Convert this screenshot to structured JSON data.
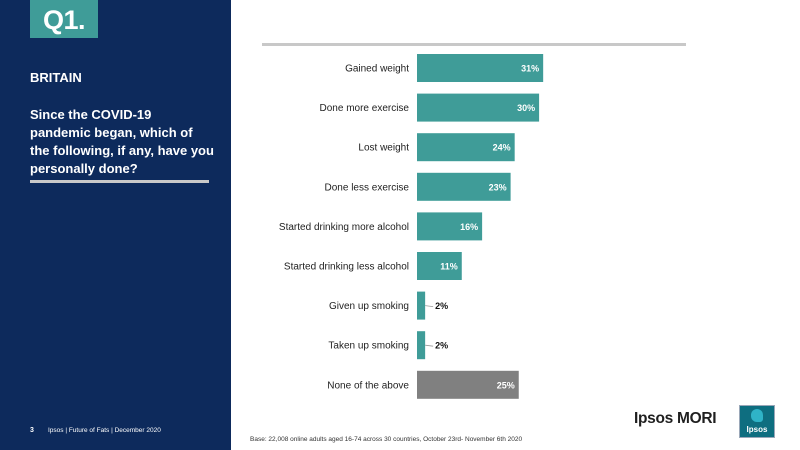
{
  "header": {
    "question_number": "Q1.",
    "region": "BRITAIN",
    "question": "Since the COVID-19 pandemic began, which of the following, if any, have you personally done?"
  },
  "footer": {
    "page_number": "3",
    "source": "Ipsos | Future of Fats | December 2020",
    "base_note": "Base: 22,008 online adults aged 16-74 across 30 countries, October 23rd- November 6th 2020",
    "brand_name": "Ipsos MORI",
    "logo_text": "Ipsos"
  },
  "colors": {
    "panel": "#0d2a5c",
    "accent": "#3f9c98",
    "bar": "#3f9c98",
    "bar_none": "#808080"
  },
  "chart_data": {
    "type": "bar",
    "orientation": "horizontal",
    "categories": [
      "Gained weight",
      "Done more exercise",
      "Lost weight",
      "Done less exercise",
      "Started drinking more alcohol",
      "Started drinking less alcohol",
      "Given up smoking",
      "Taken up smoking",
      "None of the above"
    ],
    "values": [
      31,
      30,
      24,
      23,
      16,
      11,
      2,
      2,
      25
    ],
    "value_labels": [
      "31%",
      "30%",
      "24%",
      "23%",
      "16%",
      "11%",
      "2%",
      "2%",
      "25%"
    ],
    "highlight_category": "None of the above",
    "title": "",
    "xlabel": "",
    "ylabel": "",
    "xlim": [
      0,
      65
    ],
    "grid": false,
    "legend": "none"
  }
}
